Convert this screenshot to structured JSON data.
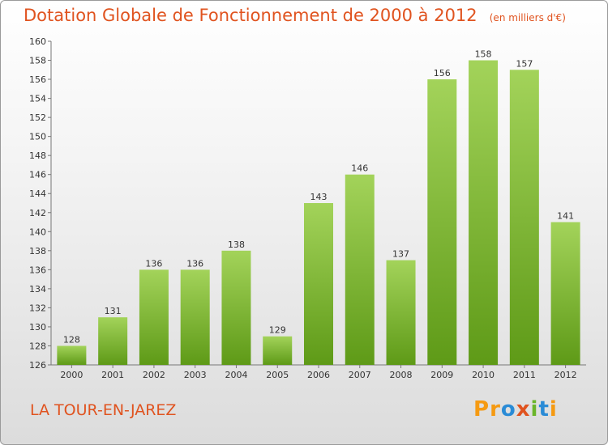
{
  "header": {
    "title": "Dotation Globale de Fonctionnement de 2000 à 2012",
    "unit": "(en milliers d'€)"
  },
  "footer": {
    "place": "LA TOUR-EN-JAREZ",
    "logo": "Proxiti"
  },
  "colors": {
    "title": "#e0531f",
    "bar_light": "#a3d35a",
    "bar_dark": "#5e9a17"
  },
  "chart_data": {
    "type": "bar",
    "title": "Dotation Globale de Fonctionnement de 2000 à 2012",
    "categories": [
      "2000",
      "2001",
      "2002",
      "2003",
      "2004",
      "2005",
      "2006",
      "2007",
      "2008",
      "2009",
      "2010",
      "2011",
      "2012"
    ],
    "values": [
      128,
      131,
      136,
      136,
      138,
      129,
      143,
      146,
      137,
      156,
      158,
      157,
      141
    ],
    "ylim": [
      126,
      160
    ],
    "yticks": [
      126,
      128,
      130,
      132,
      134,
      136,
      138,
      140,
      142,
      144,
      146,
      148,
      150,
      152,
      154,
      156,
      158,
      160
    ],
    "grid": false,
    "legend": "none"
  }
}
